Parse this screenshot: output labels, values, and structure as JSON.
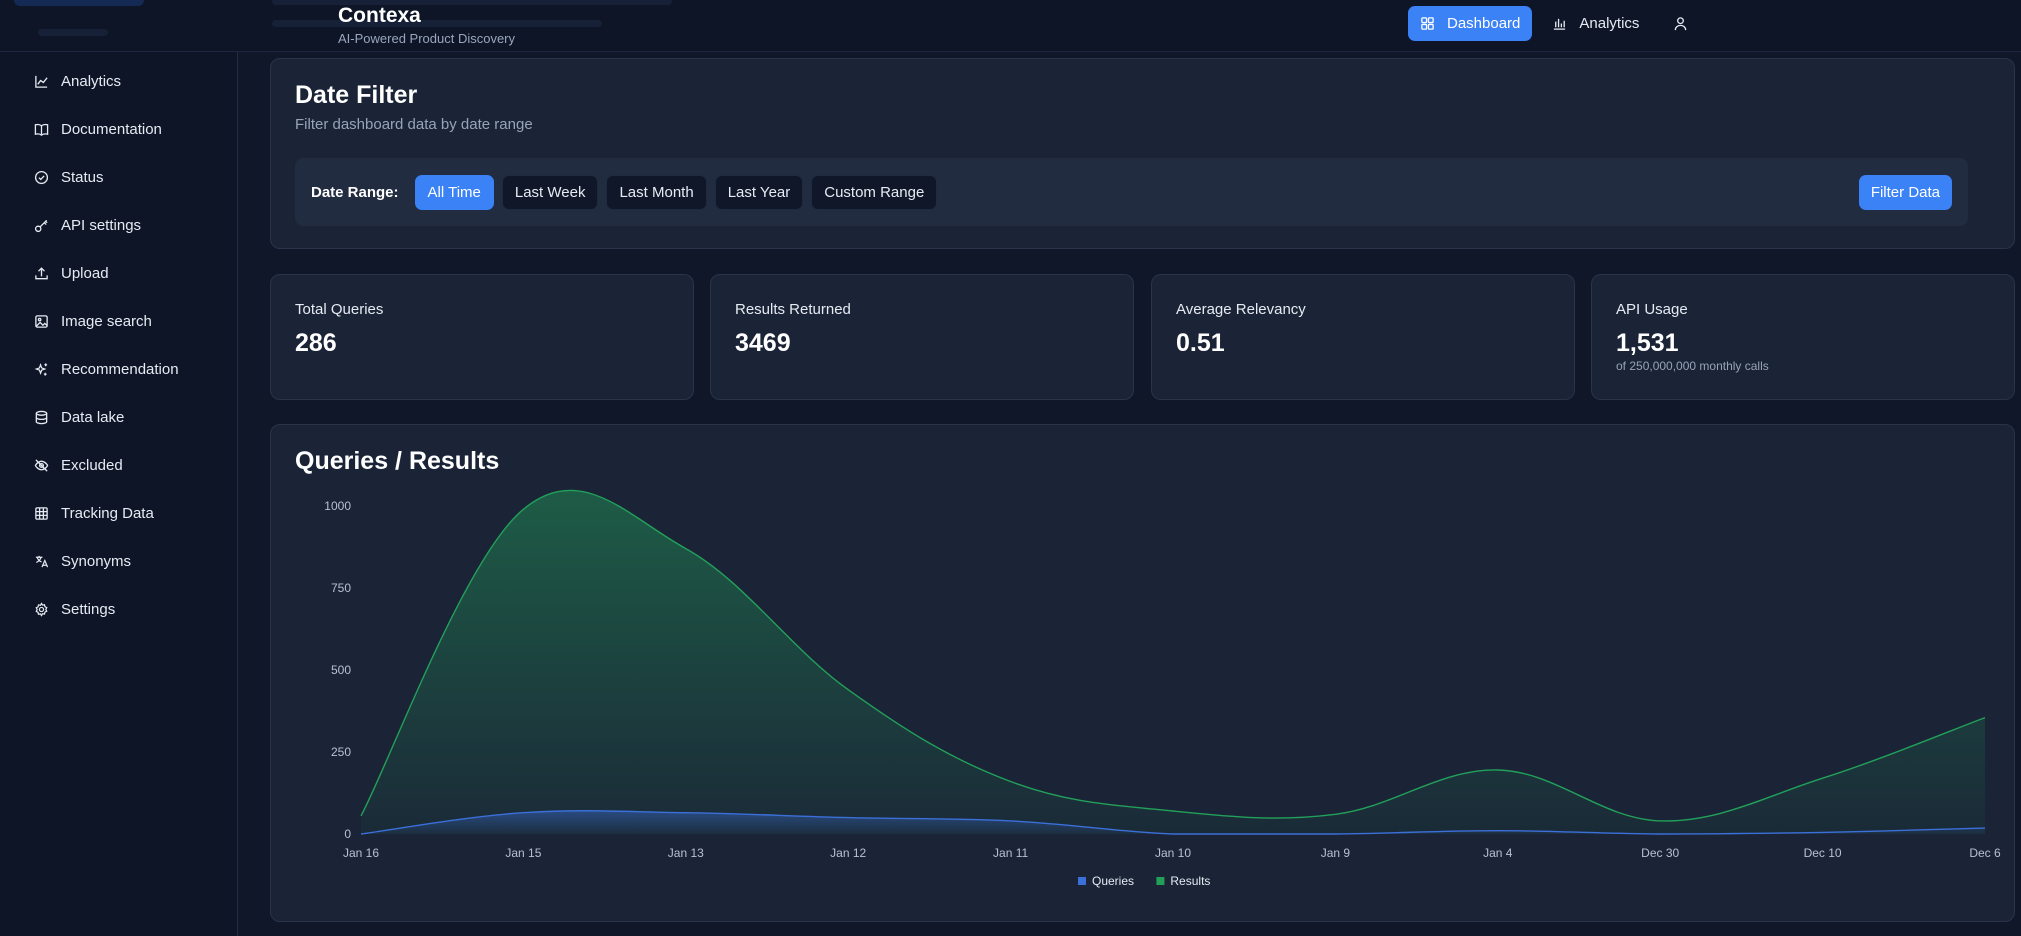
{
  "header": {
    "app_name": "Contexa",
    "tagline": "AI-Powered Product Discovery",
    "nav": [
      {
        "label": "Dashboard",
        "icon": "grid-icon",
        "active": true
      },
      {
        "label": "Analytics",
        "icon": "bar-chart-icon",
        "active": false
      }
    ],
    "user_icon": "user-icon"
  },
  "sidebar": {
    "items": [
      {
        "label": "Analytics",
        "icon": "line-chart-icon"
      },
      {
        "label": "Documentation",
        "icon": "book-icon"
      },
      {
        "label": "Status",
        "icon": "check-circle-icon"
      },
      {
        "label": "API settings",
        "icon": "key-icon"
      },
      {
        "label": "Upload",
        "icon": "upload-icon"
      },
      {
        "label": "Image search",
        "icon": "image-icon"
      },
      {
        "label": "Recommendation",
        "icon": "sparkles-icon"
      },
      {
        "label": "Data lake",
        "icon": "database-icon"
      },
      {
        "label": "Excluded",
        "icon": "eye-off-icon"
      },
      {
        "label": "Tracking Data",
        "icon": "table-icon"
      },
      {
        "label": "Synonyms",
        "icon": "translate-icon"
      },
      {
        "label": "Settings",
        "icon": "gear-icon"
      }
    ]
  },
  "date_filter": {
    "title": "Date Filter",
    "subtitle": "Filter dashboard data by date range",
    "range_label": "Date Range:",
    "options": [
      "All Time",
      "Last Week",
      "Last Month",
      "Last Year",
      "Custom Range"
    ],
    "selected": "All Time",
    "button": "Filter Data"
  },
  "stats": [
    {
      "label": "Total Queries",
      "value": "286",
      "note": ""
    },
    {
      "label": "Results Returned",
      "value": "3469",
      "note": ""
    },
    {
      "label": "Average Relevancy",
      "value": "0.51",
      "note": ""
    },
    {
      "label": "API Usage",
      "value": "1,531",
      "note": "of 250,000,000 monthly calls"
    }
  ],
  "chart": {
    "title": "Queries / Results"
  },
  "colors": {
    "accent": "#3b82f6",
    "queries": "#3b6fd9",
    "results": "#22a05a",
    "background": "#0f1729",
    "panel": "#1a2436"
  },
  "chart_data": {
    "type": "area",
    "title": "Queries / Results",
    "xlabel": "",
    "ylabel": "",
    "x": [
      "Jan 16",
      "Jan 15",
      "Jan 13",
      "Jan 12",
      "Jan 11",
      "Jan 10",
      "Jan 9",
      "Jan 4",
      "Dec 30",
      "Dec 10",
      "Dec 6"
    ],
    "ylim": [
      0,
      1000
    ],
    "yticks": [
      0,
      250,
      500,
      750,
      1000
    ],
    "grid": false,
    "legend": "bottom-center",
    "series": [
      {
        "name": "Queries",
        "color": "#3b6fd9",
        "values": [
          0,
          65,
          65,
          50,
          40,
          0,
          0,
          10,
          0,
          5,
          18
        ]
      },
      {
        "name": "Results",
        "color": "#22a05a",
        "values": [
          55,
          990,
          870,
          440,
          160,
          70,
          60,
          195,
          40,
          170,
          355
        ]
      }
    ]
  }
}
